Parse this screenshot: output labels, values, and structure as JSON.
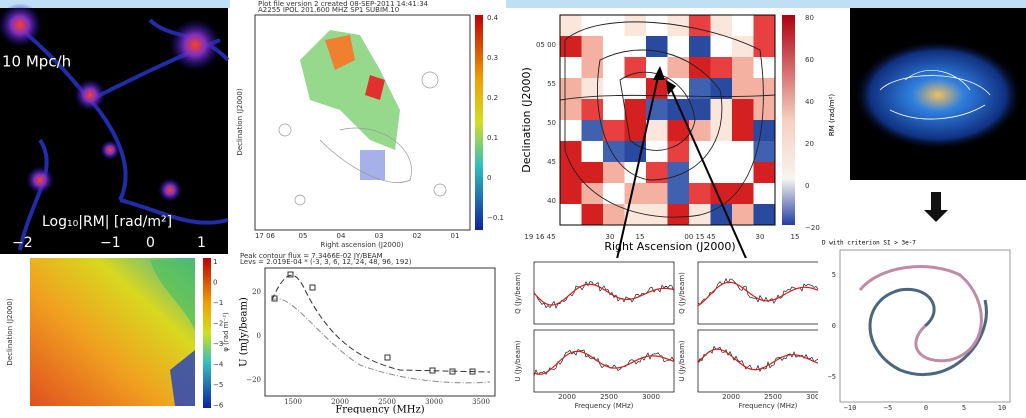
{
  "cosmic_web": {
    "scale_label": "10 Mpc/h",
    "colorbar_label": "Log₁₀|RM| [rad/m²]",
    "colorbar_ticks": [
      "−2",
      "−1",
      "0",
      "1"
    ]
  },
  "rm_map": {
    "y_label": "Declination (J2000)",
    "colorbar_label": "φ (rad m⁻²)",
    "colorbar_ticks": [
      "1",
      "0",
      "−1",
      "−2",
      "−3",
      "−4",
      "−5",
      "−6"
    ]
  },
  "pol_map": {
    "header": [
      "Plot file version 2 created 08-SEP-2011 14:41:34",
      "A2255 IPOL 201.600 MHZ SP1 SUBIM.10"
    ],
    "y_label": "Declination (J2000)",
    "x_label": "Right ascension (J2000)",
    "colorbar_ticks": [
      "0.4",
      "0.3",
      "0.2",
      "0.1",
      "0",
      "−0.1"
    ],
    "x_ticks": [
      "17 06",
      "05",
      "04",
      "03",
      "02",
      "01"
    ]
  },
  "u_plot": {
    "header": [
      "Peak contour flux = 7.3466E-02 JY/BEAM",
      "Levs = 2.019E-04 * (-3, 3, 6, 12, 24, 48, 96, 192)"
    ],
    "y_label": "U (mJy/beam)",
    "x_label": "Frequency (MHz)",
    "y_ticks": [
      "20",
      "0",
      "−20"
    ],
    "x_ticks": [
      "1500",
      "2000",
      "2500",
      "3000",
      "3500"
    ]
  },
  "rm_grid": {
    "y_label": "Declination (J2000)",
    "x_label": "Right Ascension (J2000)",
    "y_ticks": [
      "05 00",
      "55",
      "50",
      "45",
      "40"
    ],
    "x_ticks": [
      "19 16 45",
      "30",
      "15",
      "00 15 45",
      "30",
      "15"
    ],
    "colorbar_ticks": [
      "80",
      "60",
      "40",
      "20",
      "0",
      "−20"
    ]
  },
  "spectra": {
    "y_labels": [
      "Q (Jy/beam)",
      "U (Jy/beam)",
      "Q (Jy/beam)",
      "U (Jy/beam)"
    ],
    "x_label": "Frequency (MHz)",
    "x_ticks": [
      "2000",
      "2500",
      "3000"
    ]
  },
  "galaxy": {
    "colorbar_label": "RM (rad/m²)"
  },
  "spiral": {
    "title": "D with criterion SI > 3e-7",
    "y_ticks": [
      "5",
      "0",
      "−5"
    ],
    "x_ticks": [
      "−10",
      "−5",
      "0",
      "5",
      "10"
    ]
  }
}
